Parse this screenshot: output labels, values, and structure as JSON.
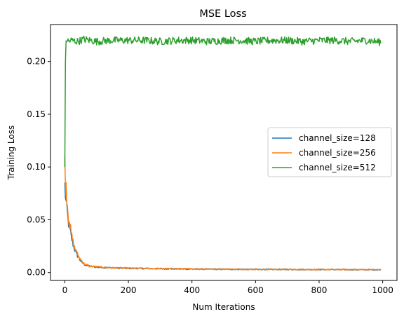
{
  "chart_data": {
    "type": "line",
    "title": "MSE Loss",
    "xlabel": "Num Iterations",
    "ylabel": "Training Loss",
    "xlim": [
      -45,
      1045
    ],
    "ylim": [
      -0.0075,
      0.235
    ],
    "xticks": [
      0,
      200,
      400,
      600,
      800,
      1000
    ],
    "yticks": [
      0.0,
      0.05,
      0.1,
      0.15,
      0.2
    ],
    "xtick_labels": [
      "0",
      "200",
      "400",
      "600",
      "800",
      "1000"
    ],
    "ytick_labels": [
      "0.00",
      "0.05",
      "0.10",
      "0.15",
      "0.20"
    ],
    "grid": false,
    "legend_position": "center-right",
    "series": [
      {
        "name": "channel_size=128",
        "color": "#1f77b4",
        "x": [
          0,
          2,
          4,
          6,
          8,
          10,
          15,
          20,
          25,
          30,
          40,
          50,
          60,
          70,
          80,
          100,
          120,
          150,
          200,
          300,
          400,
          500,
          600,
          700,
          800,
          900,
          1000
        ],
        "y": [
          0.082,
          0.074,
          0.066,
          0.06,
          0.055,
          0.05,
          0.042,
          0.034,
          0.028,
          0.023,
          0.016,
          0.011,
          0.008,
          0.0065,
          0.0058,
          0.0052,
          0.0048,
          0.0044,
          0.004,
          0.0036,
          0.0033,
          0.0031,
          0.003,
          0.0029,
          0.0028,
          0.0027,
          0.0026
        ]
      },
      {
        "name": "channel_size=256",
        "color": "#ff7f0e",
        "x": [
          0,
          2,
          4,
          6,
          8,
          10,
          15,
          20,
          25,
          30,
          40,
          50,
          60,
          70,
          80,
          100,
          120,
          150,
          200,
          300,
          400,
          500,
          600,
          700,
          800,
          900,
          1000
        ],
        "y": [
          0.102,
          0.092,
          0.083,
          0.074,
          0.066,
          0.058,
          0.046,
          0.037,
          0.03,
          0.024,
          0.017,
          0.012,
          0.0085,
          0.007,
          0.006,
          0.0054,
          0.0049,
          0.0045,
          0.0041,
          0.0037,
          0.0034,
          0.0032,
          0.003,
          0.0029,
          0.0028,
          0.0028,
          0.0027
        ]
      },
      {
        "name": "channel_size=512",
        "color": "#2ca02c",
        "x": [
          0,
          1,
          2,
          3,
          4,
          6,
          8,
          12,
          20,
          40,
          60,
          80,
          100,
          150,
          200,
          250,
          300,
          350,
          400,
          450,
          500,
          550,
          600,
          650,
          700,
          750,
          800,
          850,
          900,
          950,
          1000
        ],
        "y": [
          0.1,
          0.12,
          0.2,
          0.22,
          0.219,
          0.221,
          0.22,
          0.219,
          0.22,
          0.219,
          0.221,
          0.22,
          0.219,
          0.22,
          0.22,
          0.22,
          0.219,
          0.22,
          0.22,
          0.219,
          0.22,
          0.22,
          0.219,
          0.22,
          0.22,
          0.219,
          0.22,
          0.22,
          0.219,
          0.22,
          0.218
        ],
        "noise_amplitude": 0.0035
      }
    ]
  }
}
